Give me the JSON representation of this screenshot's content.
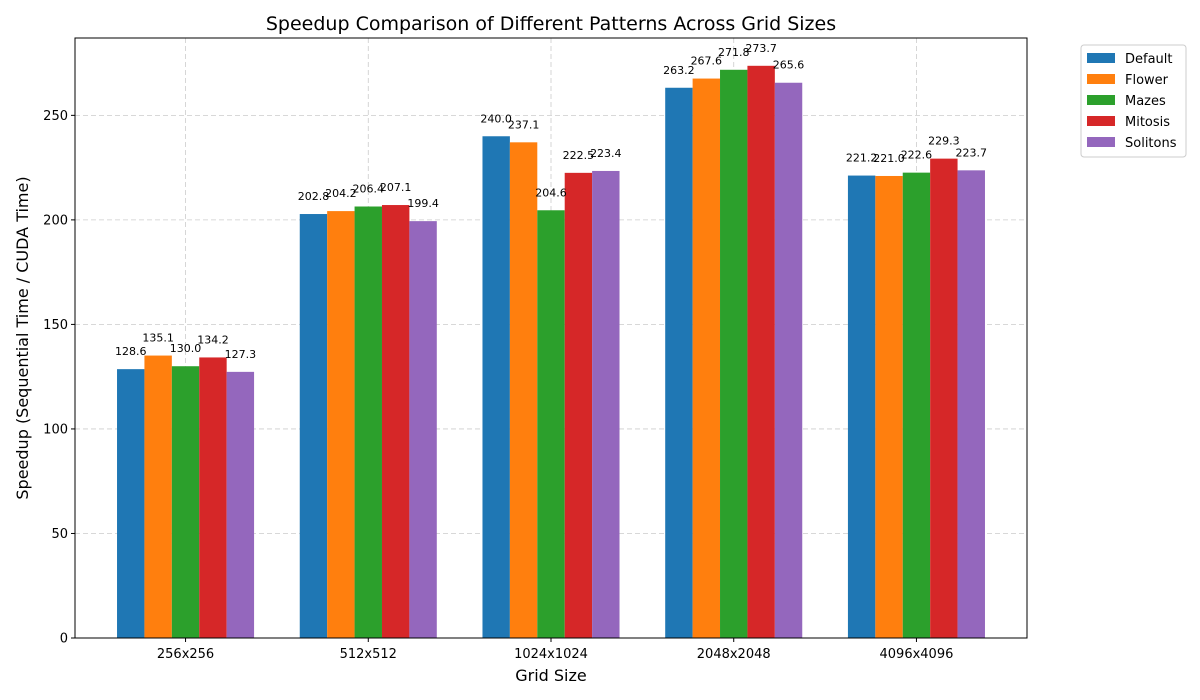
{
  "chart_data": {
    "type": "bar",
    "title": "Speedup Comparison of Different Patterns Across Grid Sizes",
    "xlabel": "Grid Size",
    "ylabel": "Speedup (Sequential Time / CUDA Time)",
    "categories": [
      "256x256",
      "512x512",
      "1024x1024",
      "2048x2048",
      "4096x4096"
    ],
    "ylim": [
      0,
      287
    ],
    "yticks": [
      0,
      50,
      100,
      150,
      200,
      250
    ],
    "grid": true,
    "legend_position": "outside-top-right",
    "series": [
      {
        "name": "Default",
        "color": "#1f77b4",
        "values": [
          128.6,
          202.8,
          240.0,
          263.2,
          221.2
        ],
        "labels": [
          "128.6",
          "202.8",
          "240.0",
          "263.2",
          "221.2"
        ]
      },
      {
        "name": "Flower",
        "color": "#ff7f0e",
        "values": [
          135.1,
          204.2,
          237.1,
          267.6,
          221.0
        ],
        "labels": [
          "135.1",
          "204.2",
          "237.1",
          "267.6",
          "221.0"
        ]
      },
      {
        "name": "Mazes",
        "color": "#2ca02c",
        "values": [
          130.0,
          206.4,
          204.6,
          271.8,
          222.6
        ],
        "labels": [
          "130.0",
          "206.4",
          "204.6",
          "271.8",
          "222.6"
        ]
      },
      {
        "name": "Mitosis",
        "color": "#d62728",
        "values": [
          134.2,
          207.1,
          222.5,
          273.7,
          229.3
        ],
        "labels": [
          "134.2",
          "207.1",
          "222.5",
          "273.7",
          "229.3"
        ]
      },
      {
        "name": "Solitons",
        "color": "#9467bd",
        "values": [
          127.3,
          199.4,
          223.4,
          265.6,
          223.7
        ],
        "labels": [
          "127.3",
          "199.4",
          "223.4",
          "265.6",
          "223.7"
        ]
      }
    ]
  }
}
